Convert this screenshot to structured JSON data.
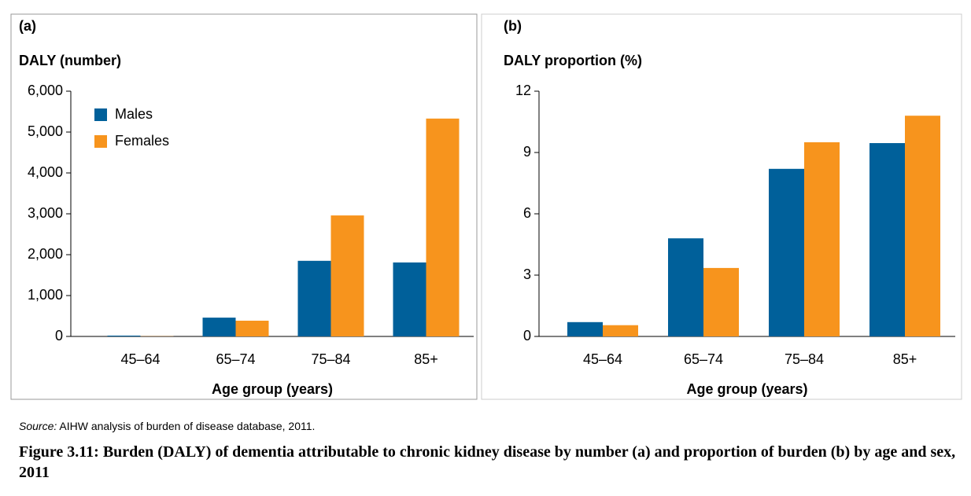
{
  "chart_data": [
    {
      "type": "bar",
      "panel_label": "(a)",
      "title": "DALY (number)",
      "x_label": "Age group (years)",
      "categories": [
        "45–64",
        "65–74",
        "75–84",
        "85+"
      ],
      "series": [
        {
          "name": "Males",
          "color": "#00609a",
          "values": [
            20,
            460,
            1850,
            1810
          ]
        },
        {
          "name": "Females",
          "color": "#f7941d",
          "values": [
            5,
            385,
            2960,
            5330
          ]
        }
      ],
      "ylim": [
        0,
        6000
      ],
      "yticks": [
        0,
        {
          "value": 1000,
          "label": "1,000"
        },
        {
          "value": 2000,
          "label": "2,000"
        },
        {
          "value": 3000,
          "label": "3,000"
        },
        {
          "value": 4000,
          "label": "4,000"
        },
        {
          "value": 5000,
          "label": "5,000"
        },
        {
          "value": 6000,
          "label": "6,000"
        }
      ],
      "legend": "top-left"
    },
    {
      "type": "bar",
      "panel_label": "(b)",
      "title": "DALY proportion (%)",
      "x_label": "Age group (years)",
      "categories": [
        "45–64",
        "65–74",
        "75–84",
        "85+"
      ],
      "series": [
        {
          "color": "#00609a",
          "values": [
            0.7,
            4.8,
            8.2,
            9.46
          ]
        },
        {
          "color": "#f7941d",
          "values": [
            0.55,
            3.35,
            9.5,
            10.8
          ]
        }
      ],
      "ylim": [
        0,
        12
      ],
      "yticks": [
        0,
        3,
        6,
        9,
        12
      ]
    }
  ],
  "source": {
    "label": "Source:",
    "text": "AIHW analysis of burden of disease database, 2011."
  },
  "caption": "Figure 3.11: Burden (DALY) of dementia attributable to chronic kidney disease by number (a) and proportion of burden (b) by age and sex, 2011"
}
